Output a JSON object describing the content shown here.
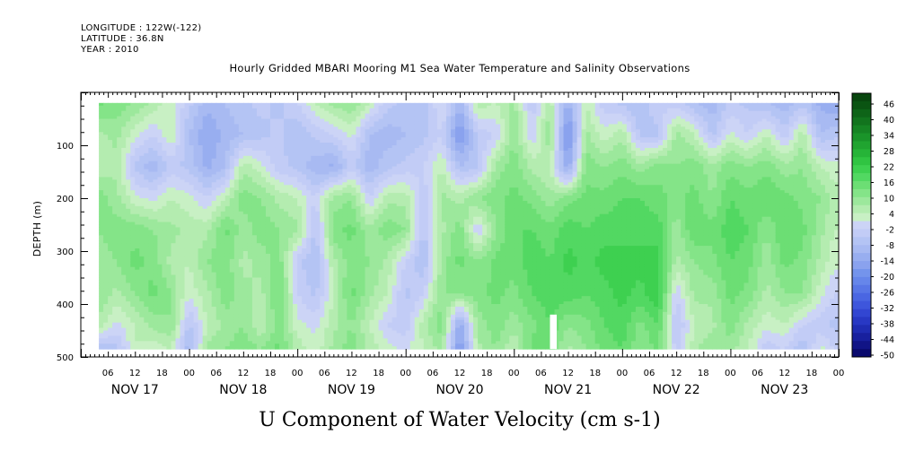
{
  "header": {
    "longitude": "LONGITUDE : 122W(-122)",
    "latitude": "LATITUDE : 36.8N",
    "year": "YEAR : 2010"
  },
  "chart_data": {
    "type": "heatmap",
    "title": "Hourly Gridded MBARI Mooring M1 Sea Water Temperature and Salinity Observations",
    "xlabel": "U Component of Water Velocity (cm s-1)",
    "ylabel": "DEPTH (m)",
    "x_range_hours": [
      0,
      168
    ],
    "x_data_start_hour": 4,
    "x_day_labels": [
      "NOV 17",
      "NOV 18",
      "NOV 19",
      "NOV 20",
      "NOV 21",
      "NOV 22",
      "NOV 23"
    ],
    "x_hour_labels": [
      "06",
      "12",
      "18",
      "00"
    ],
    "ylim": [
      500,
      0
    ],
    "data_depth_range": [
      20,
      485
    ],
    "y_ticks": [
      100,
      200,
      300,
      400,
      500
    ],
    "colorbar": {
      "labels": [
        "46",
        "40",
        "34",
        "28",
        "22",
        "16",
        "10",
        "4",
        "-2",
        "-8",
        "-14",
        "-20",
        "-26",
        "-32",
        "-38",
        "-44",
        "-50"
      ],
      "levels": [
        -50,
        -47,
        -44,
        -41,
        -38,
        -35,
        -32,
        -29,
        -26,
        -23,
        -20,
        -17,
        -14,
        -11,
        -8,
        -5,
        -2,
        1,
        4,
        7,
        10,
        13,
        16,
        19,
        22,
        25,
        28,
        31,
        34,
        37,
        40,
        43,
        46,
        49
      ],
      "colors": [
        "#0a0a6e",
        "#111486",
        "#18209e",
        "#1f2cb2",
        "#2838c4",
        "#3246d2",
        "#3e56dc",
        "#4a66e2",
        "#5876e6",
        "#6686ea",
        "#7494ec",
        "#8aa2ee",
        "#98aef0",
        "#a8baf2",
        "#b4c4f4",
        "#c2ccf6",
        "#ccd4f6",
        "#c8f0c4",
        "#b4ecb0",
        "#9ce89c",
        "#84e488",
        "#6cde74",
        "#52d862",
        "#3ed050",
        "#30c442",
        "#26b438",
        "#20a430",
        "#1a942a",
        "#168424",
        "#12741e",
        "#0e6418",
        "#0a5412",
        "#08460e"
      ]
    },
    "series": [
      {
        "depths": [
          20,
          80,
          140,
          200,
          260,
          320,
          380,
          440,
          485
        ],
        "columns": [
          {
            "hour": 4,
            "values": [
              14,
              6,
              5,
              12,
              10,
              8,
              10,
              6,
              -8
            ]
          },
          {
            "hour": 8,
            "values": [
              12,
              8,
              6,
              8,
              12,
              10,
              6,
              0,
              -6
            ]
          },
          {
            "hour": 12,
            "values": [
              10,
              2,
              -6,
              2,
              12,
              14,
              10,
              4,
              4
            ]
          },
          {
            "hour": 16,
            "values": [
              6,
              -2,
              -10,
              0,
              10,
              12,
              14,
              8,
              2
            ]
          },
          {
            "hour": 20,
            "values": [
              2,
              4,
              -4,
              4,
              8,
              6,
              10,
              10,
              4
            ]
          },
          {
            "hour": 24,
            "values": [
              -4,
              -8,
              -6,
              2,
              6,
              4,
              2,
              -6,
              -10
            ]
          },
          {
            "hour": 28,
            "values": [
              -10,
              -14,
              -12,
              -2,
              6,
              10,
              6,
              4,
              8
            ]
          },
          {
            "hour": 32,
            "values": [
              -8,
              -10,
              -8,
              4,
              14,
              12,
              12,
              8,
              10
            ]
          },
          {
            "hour": 36,
            "values": [
              -6,
              -8,
              6,
              12,
              8,
              6,
              8,
              10,
              12
            ]
          },
          {
            "hour": 40,
            "values": [
              -4,
              -6,
              2,
              10,
              12,
              8,
              6,
              4,
              10
            ]
          },
          {
            "hour": 44,
            "values": [
              -6,
              -4,
              -4,
              6,
              10,
              12,
              14,
              12,
              14
            ]
          },
          {
            "hour": 48,
            "values": [
              -2,
              -8,
              -6,
              4,
              8,
              -4,
              -2,
              2,
              6
            ]
          },
          {
            "hour": 52,
            "values": [
              4,
              -4,
              -10,
              -2,
              -6,
              -8,
              -6,
              0,
              2
            ]
          },
          {
            "hour": 56,
            "values": [
              8,
              -2,
              -12,
              8,
              12,
              6,
              4,
              6,
              8
            ]
          },
          {
            "hour": 60,
            "values": [
              10,
              2,
              -4,
              10,
              14,
              12,
              14,
              10,
              12
            ]
          },
          {
            "hour": 64,
            "values": [
              4,
              -8,
              -10,
              -2,
              8,
              10,
              8,
              4,
              6
            ]
          },
          {
            "hour": 68,
            "values": [
              -4,
              -10,
              -6,
              6,
              12,
              6,
              4,
              -2,
              2
            ]
          },
          {
            "hour": 72,
            "values": [
              -6,
              -8,
              -4,
              6,
              10,
              -2,
              -6,
              -4,
              0
            ]
          },
          {
            "hour": 76,
            "values": [
              -8,
              -6,
              -2,
              -4,
              -6,
              -8,
              -2,
              6,
              4
            ]
          },
          {
            "hour": 80,
            "values": [
              2,
              -2,
              4,
              8,
              6,
              8,
              10,
              12,
              8
            ]
          },
          {
            "hour": 84,
            "values": [
              -10,
              -18,
              -8,
              6,
              12,
              14,
              10,
              -14,
              -18
            ]
          },
          {
            "hour": 88,
            "values": [
              6,
              -4,
              -6,
              10,
              -2,
              10,
              12,
              8,
              6
            ]
          },
          {
            "hour": 92,
            "values": [
              4,
              -2,
              8,
              12,
              10,
              14,
              14,
              12,
              10
            ]
          },
          {
            "hour": 96,
            "values": [
              8,
              10,
              12,
              14,
              16,
              14,
              12,
              8,
              4
            ]
          },
          {
            "hour": 100,
            "values": [
              -4,
              -2,
              6,
              12,
              16,
              18,
              16,
              12,
              14
            ]
          },
          {
            "hour": 104,
            "values": [
              6,
              10,
              4,
              8,
              14,
              16,
              18,
              16,
              14
            ]
          },
          {
            "hour": 108,
            "values": [
              -12,
              -20,
              -14,
              12,
              18,
              20,
              18,
              10,
              6
            ]
          },
          {
            "hour": 112,
            "values": [
              4,
              8,
              12,
              14,
              16,
              18,
              16,
              12,
              10
            ]
          },
          {
            "hour": 116,
            "values": [
              -4,
              2,
              10,
              14,
              18,
              20,
              18,
              16,
              14
            ]
          },
          {
            "hour": 120,
            "values": [
              -6,
              6,
              12,
              16,
              18,
              20,
              20,
              18,
              16
            ]
          },
          {
            "hour": 124,
            "values": [
              -8,
              -6,
              8,
              16,
              18,
              20,
              18,
              12,
              10
            ]
          },
          {
            "hour": 128,
            "values": [
              -2,
              -6,
              12,
              14,
              18,
              20,
              22,
              16,
              14
            ]
          },
          {
            "hour": 132,
            "values": [
              -4,
              8,
              10,
              12,
              8,
              6,
              -2,
              -6,
              -4
            ]
          },
          {
            "hour": 136,
            "values": [
              -8,
              4,
              12,
              14,
              16,
              10,
              8,
              4,
              6
            ]
          },
          {
            "hour": 140,
            "values": [
              -10,
              -6,
              8,
              10,
              14,
              12,
              8,
              6,
              10
            ]
          },
          {
            "hour": 144,
            "values": [
              -4,
              2,
              12,
              16,
              18,
              16,
              14,
              12,
              8
            ]
          },
          {
            "hour": 148,
            "values": [
              -6,
              -2,
              10,
              14,
              16,
              14,
              12,
              6,
              4
            ]
          },
          {
            "hour": 152,
            "values": [
              -8,
              4,
              12,
              16,
              10,
              8,
              6,
              2,
              -4
            ]
          },
          {
            "hour": 156,
            "values": [
              -10,
              -4,
              8,
              14,
              16,
              14,
              10,
              4,
              -2
            ]
          },
          {
            "hour": 160,
            "values": [
              -6,
              6,
              10,
              12,
              14,
              12,
              10,
              -2,
              -8
            ]
          },
          {
            "hour": 164,
            "values": [
              -12,
              -8,
              4,
              10,
              8,
              6,
              2,
              -4,
              2
            ]
          },
          {
            "hour": 167,
            "values": [
              -14,
              -6,
              2,
              6,
              4,
              2,
              -2,
              -6,
              -2
            ]
          }
        ]
      }
    ],
    "missing_data": [
      {
        "hour_from": 104,
        "hour_to": 105.5,
        "depth_from": 420,
        "depth_to": 500
      }
    ]
  }
}
